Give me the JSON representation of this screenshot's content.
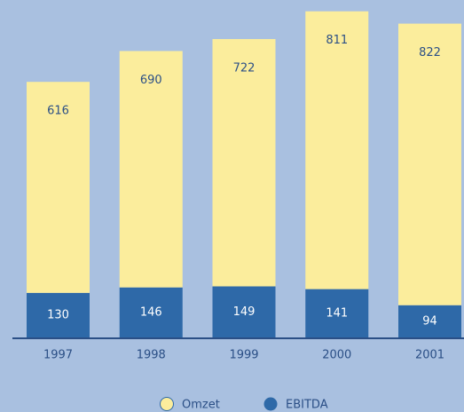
{
  "chart_data": {
    "type": "bar",
    "stacked": true,
    "categories": [
      "1997",
      "1998",
      "1999",
      "2000",
      "2001"
    ],
    "series": [
      {
        "name": "EBITDA",
        "color": "#2e69a8",
        "values": [
          130,
          146,
          149,
          141,
          94
        ]
      },
      {
        "name": "Omzet",
        "color": "#fbed9c",
        "values": [
          616,
          690,
          722,
          811,
          822
        ]
      }
    ],
    "ylim": [
      0,
      985
    ]
  }
}
